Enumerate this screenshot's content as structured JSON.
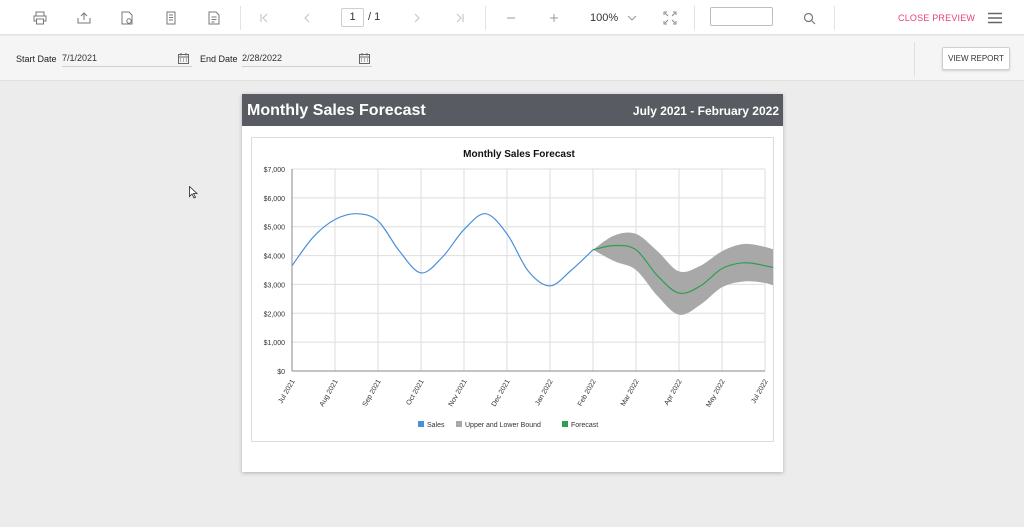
{
  "toolbar": {
    "icons": [
      "print-icon",
      "export-icon",
      "page-setup-icon",
      "print-layout-icon",
      "parameters-icon",
      "first-page-icon",
      "previous-page-icon",
      "next-page-icon",
      "last-page-icon",
      "zoom-out-icon",
      "zoom-in-icon",
      "zoom-dropdown-icon",
      "fit-page-icon",
      "search-icon",
      "menu-icon"
    ],
    "current_page": "1",
    "page_total": "/ 1",
    "zoom": "100%",
    "search_value": "",
    "close_preview": "CLOSE PREVIEW"
  },
  "parameters": {
    "start_label": "Start Date",
    "start_value": "7/1/2021",
    "end_label": "End Date",
    "end_value": "2/28/2022",
    "view_report": "VIEW REPORT"
  },
  "report": {
    "title": "Monthly Sales Forecast",
    "date_range": "July 2021 - February 2022"
  },
  "colors": {
    "sales": "#4a90d9",
    "bound": "#a8a8a8",
    "forecast": "#2e9e50",
    "header": "#585b61",
    "close_preview": "#e8417b"
  },
  "chart_data": {
    "type": "line",
    "title": "Monthly Sales Forecast",
    "xlabel": "",
    "ylabel": "",
    "ylim": [
      0,
      7000
    ],
    "yticks": [
      "$0",
      "$1,000",
      "$2,000",
      "$3,000",
      "$4,000",
      "$5,000",
      "$6,000",
      "$7,000"
    ],
    "categories": [
      "Jul 2021",
      "Aug 2021",
      "Sep 2021",
      "Oct 2021",
      "Nov 2021",
      "Dec 2021",
      "Jan 2022",
      "Feb 2022",
      "Mar 2022",
      "Apr 2022",
      "May 2022",
      "Jul 2022"
    ],
    "grid": true,
    "legend_position": "bottom",
    "sales": {
      "name": "Sales",
      "x": [
        0,
        0.5,
        1,
        1.5,
        2,
        2.5,
        3,
        3.5,
        4,
        4.5,
        5,
        5.5,
        6,
        6.5,
        7
      ],
      "y": [
        3650,
        4650,
        5250,
        5450,
        5200,
        4150,
        3400,
        3950,
        4900,
        5450,
        4750,
        3450,
        2950,
        3500,
        4200
      ]
    },
    "bounds": {
      "name": "Upper and Lower Bound",
      "x": [
        7,
        7.5,
        8,
        8.5,
        9,
        9.5,
        10,
        10.5,
        11,
        11.4
      ],
      "upper": [
        4200,
        4700,
        4750,
        4150,
        3450,
        3650,
        4150,
        4400,
        4300,
        4100
      ],
      "lower": [
        4200,
        3800,
        3500,
        2600,
        1950,
        2300,
        2900,
        3100,
        3050,
        2850
      ]
    },
    "forecast": {
      "name": "Forecast",
      "x": [
        7,
        7.5,
        8,
        8.5,
        9,
        9.5,
        10,
        10.5,
        11,
        11.4
      ],
      "y": [
        4200,
        4350,
        4200,
        3300,
        2700,
        2950,
        3550,
        3750,
        3650,
        3500
      ]
    }
  }
}
